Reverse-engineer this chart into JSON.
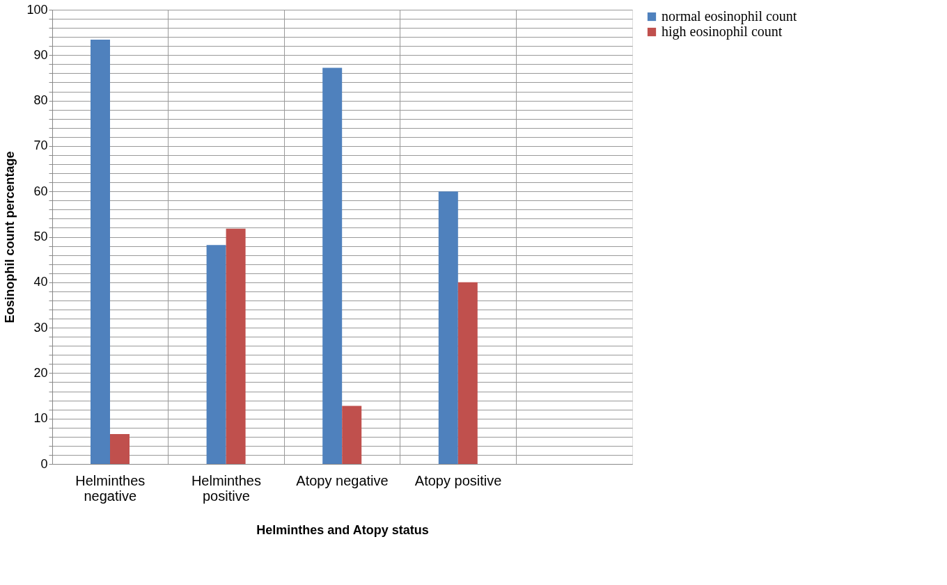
{
  "chart_data": {
    "type": "bar",
    "xlabel": "Helminthes and Atopy status",
    "ylabel": "Eosinophil count percentage",
    "categories": [
      "Helminthes negative",
      "Helminthes positive",
      "Atopy negative",
      "Atopy positive",
      null
    ],
    "series": [
      {
        "name": "normal eosinophil  count",
        "color": "#4f81bd",
        "values": [
          93.4,
          48.2,
          87.2,
          60,
          null
        ]
      },
      {
        "name": "high eosinophil count",
        "color": "#c0504d",
        "values": [
          6.6,
          51.8,
          12.8,
          40,
          null
        ]
      }
    ],
    "ylim": [
      0,
      100
    ],
    "yticks": [
      0,
      {
        "value": 2,
        "label": null
      },
      {
        "value": 4,
        "label": null
      },
      {
        "value": 6,
        "label": null
      },
      {
        "value": 8,
        "label": null
      },
      10,
      {
        "value": 12,
        "label": null
      },
      {
        "value": 14,
        "label": null
      },
      {
        "value": 16,
        "label": null
      },
      {
        "value": 18,
        "label": null
      },
      20,
      {
        "value": 22,
        "label": null
      },
      {
        "value": 24,
        "label": null
      },
      {
        "value": 26,
        "label": null
      },
      {
        "value": 28,
        "label": null
      },
      30,
      {
        "value": 32,
        "label": null
      },
      {
        "value": 34,
        "label": null
      },
      {
        "value": 36,
        "label": null
      },
      {
        "value": 38,
        "label": null
      },
      40,
      {
        "value": 42,
        "label": null
      },
      {
        "value": 44,
        "label": null
      },
      {
        "value": 46,
        "label": null
      },
      {
        "value": 48,
        "label": null
      },
      50,
      {
        "value": 52,
        "label": null
      },
      {
        "value": 54,
        "label": null
      },
      {
        "value": 56,
        "label": null
      },
      {
        "value": 58,
        "label": null
      },
      60,
      {
        "value": 62,
        "label": null
      },
      {
        "value": 64,
        "label": null
      },
      {
        "value": 66,
        "label": null
      },
      {
        "value": 68,
        "label": null
      },
      70,
      {
        "value": 72,
        "label": null
      },
      {
        "value": 74,
        "label": null
      },
      {
        "value": 76,
        "label": null
      },
      {
        "value": 78,
        "label": null
      },
      80,
      {
        "value": 82,
        "label": null
      },
      {
        "value": 84,
        "label": null
      },
      {
        "value": 86,
        "label": null
      },
      {
        "value": 88,
        "label": null
      },
      90,
      {
        "value": 92,
        "label": null
      },
      {
        "value": 94,
        "label": null
      },
      {
        "value": 96,
        "label": null
      },
      {
        "value": 98,
        "label": null
      },
      100
    ],
    "grid": true,
    "legend": "right"
  }
}
